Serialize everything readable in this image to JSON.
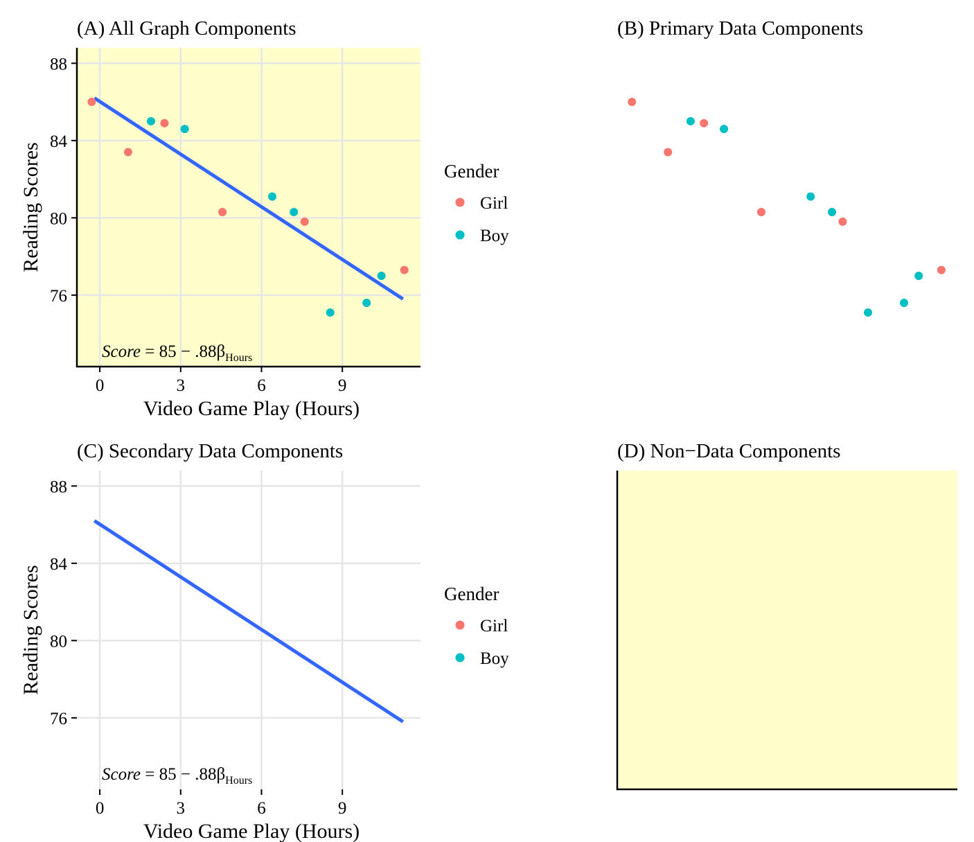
{
  "colors": {
    "girl": "#F8766D",
    "boy": "#00BFC4",
    "fit_line": "#3366FF",
    "panel_bg": "#FFFFCC",
    "grid": "#E6E6E6",
    "axis": "#000000"
  },
  "legend": {
    "title": "Gender",
    "items": [
      {
        "label": "Girl",
        "key": "girl"
      },
      {
        "label": "Boy",
        "key": "boy"
      }
    ]
  },
  "equation": {
    "lhs": "Score",
    "rhs": " = 85 − .88β",
    "sub": "Hours"
  },
  "chart_data": [
    {
      "id": "A",
      "type": "scatter",
      "title": "(A) All Graph Components",
      "xlabel": "Video Game Play (Hours)",
      "ylabel": "Reading Scores",
      "xlim": [
        -0.85,
        11.9
      ],
      "ylim": [
        72.3,
        88.8
      ],
      "xticks": [
        0,
        3,
        6,
        9
      ],
      "yticks": [
        76,
        80,
        84,
        88
      ],
      "show_points": true,
      "show_line": true,
      "show_grid": true,
      "show_axes": true,
      "show_bg": true,
      "show_legend": true,
      "show_equation": true
    },
    {
      "id": "B",
      "type": "scatter",
      "title": "(B) Primary Data Components",
      "xlabel": "",
      "ylabel": "",
      "xlim": [
        -0.85,
        11.9
      ],
      "ylim": [
        72.3,
        88.8
      ],
      "xticks": [],
      "yticks": [],
      "show_points": true,
      "show_line": false,
      "show_grid": false,
      "show_axes": false,
      "show_bg": false,
      "show_legend": false,
      "show_equation": false
    },
    {
      "id": "C",
      "type": "line",
      "title": "(C) Secondary Data Components",
      "xlabel": "Video Game Play (Hours)",
      "ylabel": "Reading Scores",
      "xlim": [
        -0.85,
        11.9
      ],
      "ylim": [
        72.3,
        88.8
      ],
      "xticks": [
        0,
        3,
        6,
        9
      ],
      "yticks": [
        76,
        80,
        84,
        88
      ],
      "show_points": false,
      "show_line": true,
      "show_grid": true,
      "show_axes": false,
      "show_bg": false,
      "show_legend": true,
      "show_equation": true
    },
    {
      "id": "D",
      "type": "scatter",
      "title": "(D) Non−Data Components",
      "xlabel": "",
      "ylabel": "",
      "xlim": [
        -0.85,
        11.9
      ],
      "ylim": [
        72.3,
        88.8
      ],
      "xticks": [],
      "yticks": [],
      "show_points": false,
      "show_line": false,
      "show_grid": false,
      "show_axes": true,
      "show_bg": true,
      "show_legend": false,
      "show_equation": false
    }
  ],
  "points": [
    {
      "x": -0.3,
      "y": 86.0,
      "gender": "girl"
    },
    {
      "x": 1.05,
      "y": 83.4,
      "gender": "girl"
    },
    {
      "x": 1.9,
      "y": 85.0,
      "gender": "boy"
    },
    {
      "x": 2.4,
      "y": 84.9,
      "gender": "girl"
    },
    {
      "x": 3.15,
      "y": 84.6,
      "gender": "boy"
    },
    {
      "x": 4.55,
      "y": 80.3,
      "gender": "girl"
    },
    {
      "x": 6.4,
      "y": 81.1,
      "gender": "boy"
    },
    {
      "x": 7.2,
      "y": 80.3,
      "gender": "boy"
    },
    {
      "x": 7.6,
      "y": 79.8,
      "gender": "girl"
    },
    {
      "x": 8.55,
      "y": 75.1,
      "gender": "boy"
    },
    {
      "x": 9.9,
      "y": 75.6,
      "gender": "boy"
    },
    {
      "x": 10.45,
      "y": 77.0,
      "gender": "boy"
    },
    {
      "x": 11.3,
      "y": 77.3,
      "gender": "girl"
    }
  ],
  "fit_line": {
    "x": [
      -0.2,
      11.25
    ],
    "y": [
      86.2,
      75.8
    ]
  }
}
